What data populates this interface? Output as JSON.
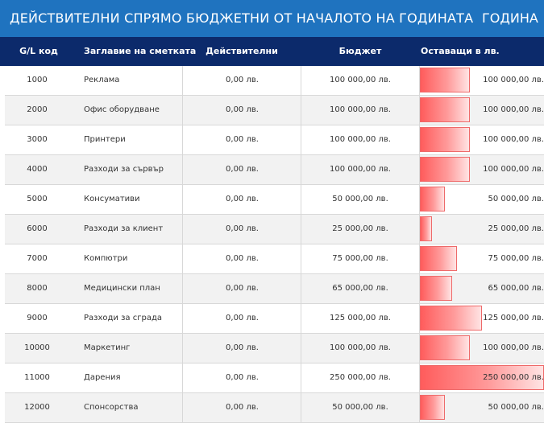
{
  "header": {
    "title": "ДЕЙСТВИТЕЛНИ СПРЯМО БЮДЖЕТНИ ОТ НАЧАЛОТО НА ГОДИНАТА",
    "period_label": "ГОДИНА"
  },
  "columns": {
    "code": "G/L код",
    "name": "Заглавие на сметката",
    "actual": "Действителни",
    "budget": "Бюджет",
    "remaining": "Оставащи в лв."
  },
  "bar_scale_max": 250000,
  "rows": [
    {
      "code": "1000",
      "name": "Реклама",
      "actual": "0,00 лв.",
      "budget": "100 000,00 лв.",
      "remaining": 100000,
      "remaining_label": "100 000,00 лв."
    },
    {
      "code": "2000",
      "name": "Офис оборудване",
      "actual": "0,00 лв.",
      "budget": "100 000,00 лв.",
      "remaining": 100000,
      "remaining_label": "100 000,00 лв."
    },
    {
      "code": "3000",
      "name": "Принтери",
      "actual": "0,00 лв.",
      "budget": "100 000,00 лв.",
      "remaining": 100000,
      "remaining_label": "100 000,00 лв."
    },
    {
      "code": "4000",
      "name": "Разходи за сървър",
      "actual": "0,00 лв.",
      "budget": "100 000,00 лв.",
      "remaining": 100000,
      "remaining_label": "100 000,00 лв."
    },
    {
      "code": "5000",
      "name": "Консумативи",
      "actual": "0,00 лв.",
      "budget": "50 000,00 лв.",
      "remaining": 50000,
      "remaining_label": "50 000,00 лв."
    },
    {
      "code": "6000",
      "name": "Разходи за клиент",
      "actual": "0,00 лв.",
      "budget": "25 000,00 лв.",
      "remaining": 25000,
      "remaining_label": "25 000,00 лв."
    },
    {
      "code": "7000",
      "name": "Компютри",
      "actual": "0,00 лв.",
      "budget": "75 000,00 лв.",
      "remaining": 75000,
      "remaining_label": "75 000,00 лв."
    },
    {
      "code": "8000",
      "name": "Медицински план",
      "actual": "0,00 лв.",
      "budget": "65 000,00 лв.",
      "remaining": 65000,
      "remaining_label": "65 000,00 лв."
    },
    {
      "code": "9000",
      "name": "Разходи за сграда",
      "actual": "0,00 лв.",
      "budget": "125 000,00 лв.",
      "remaining": 125000,
      "remaining_label": "125 000,00 лв."
    },
    {
      "code": "10000",
      "name": "Маркетинг",
      "actual": "0,00 лв.",
      "budget": "100 000,00 лв.",
      "remaining": 100000,
      "remaining_label": "100 000,00 лв."
    },
    {
      "code": "11000",
      "name": "Дарения",
      "actual": "0,00 лв.",
      "budget": "250 000,00 лв.",
      "remaining": 250000,
      "remaining_label": "250 000,00 лв."
    },
    {
      "code": "12000",
      "name": "Спонсорства",
      "actual": "0,00 лв.",
      "budget": "50 000,00 лв.",
      "remaining": 50000,
      "remaining_label": "50 000,00 лв."
    }
  ]
}
